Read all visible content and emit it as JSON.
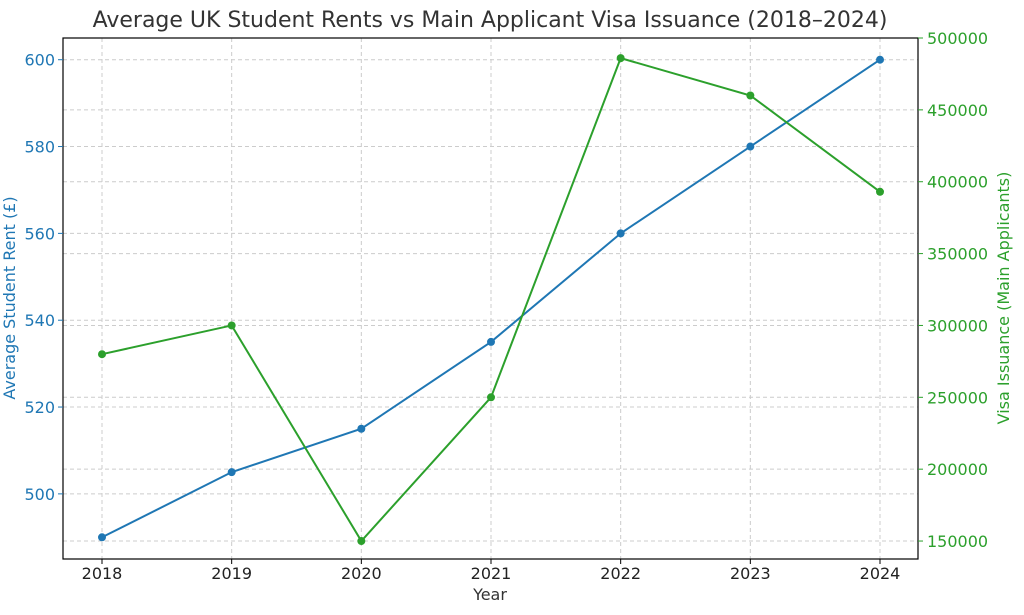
{
  "chart_data": {
    "type": "line",
    "title": "Average UK Student Rents vs Main Applicant Visa Issuance (2018–2024)",
    "xlabel": "Year",
    "categories": [
      "2018",
      "2019",
      "2020",
      "2021",
      "2022",
      "2023",
      "2024"
    ],
    "y_left": {
      "label": "Average Student Rent (£)",
      "ylim": [
        485,
        605
      ],
      "ticks": [
        500,
        520,
        540,
        560,
        580,
        600
      ],
      "color": "#1f77b4"
    },
    "y_right": {
      "label": "Visa Issuance (Main Applicants)",
      "ylim": [
        137500,
        500000
      ],
      "ticks": [
        150000,
        200000,
        250000,
        300000,
        350000,
        400000,
        450000,
        500000
      ],
      "color": "#2ca02c"
    },
    "series": [
      {
        "axis": "left",
        "color": "#1f77b4",
        "values": [
          490,
          505,
          515,
          535,
          560,
          580,
          600
        ]
      },
      {
        "axis": "right",
        "color": "#2ca02c",
        "values": [
          280000,
          300000,
          150000,
          250000,
          486000,
          460000,
          393000
        ]
      }
    ],
    "grid": true
  }
}
